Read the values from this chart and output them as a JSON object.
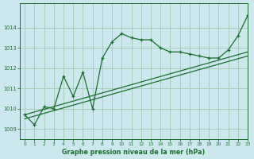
{
  "xlabel": "Graphe pression niveau de la mer (hPa)",
  "background_color": "#cce8ee",
  "grid_color": "#a8ccbb",
  "line_color": "#1a6e2e",
  "xlim": [
    -0.5,
    23
  ],
  "ylim": [
    1008.5,
    1015.2
  ],
  "yticks": [
    1009,
    1010,
    1011,
    1012,
    1013,
    1014
  ],
  "xticks": [
    0,
    1,
    2,
    3,
    4,
    5,
    6,
    7,
    8,
    9,
    10,
    11,
    12,
    13,
    14,
    15,
    16,
    17,
    18,
    19,
    20,
    21,
    22,
    23
  ],
  "series1_x": [
    0,
    1,
    2,
    3,
    4,
    5,
    6,
    7,
    8,
    9,
    10,
    11,
    12,
    13,
    14,
    15,
    16,
    17,
    18,
    19,
    20,
    21,
    22,
    23
  ],
  "series1_y": [
    1009.7,
    1009.2,
    1010.1,
    1010.0,
    1011.6,
    1010.6,
    1011.8,
    1010.0,
    1012.5,
    1013.3,
    1013.7,
    1013.5,
    1013.4,
    1013.4,
    1013.0,
    1012.8,
    1012.8,
    1012.7,
    1012.6,
    1012.5,
    1012.5,
    1012.9,
    1013.6,
    1014.6
  ],
  "series2_x": [
    0,
    23
  ],
  "series2_y": [
    1009.5,
    1012.6
  ],
  "series3_x": [
    0,
    23
  ],
  "series3_y": [
    1009.7,
    1012.8
  ]
}
